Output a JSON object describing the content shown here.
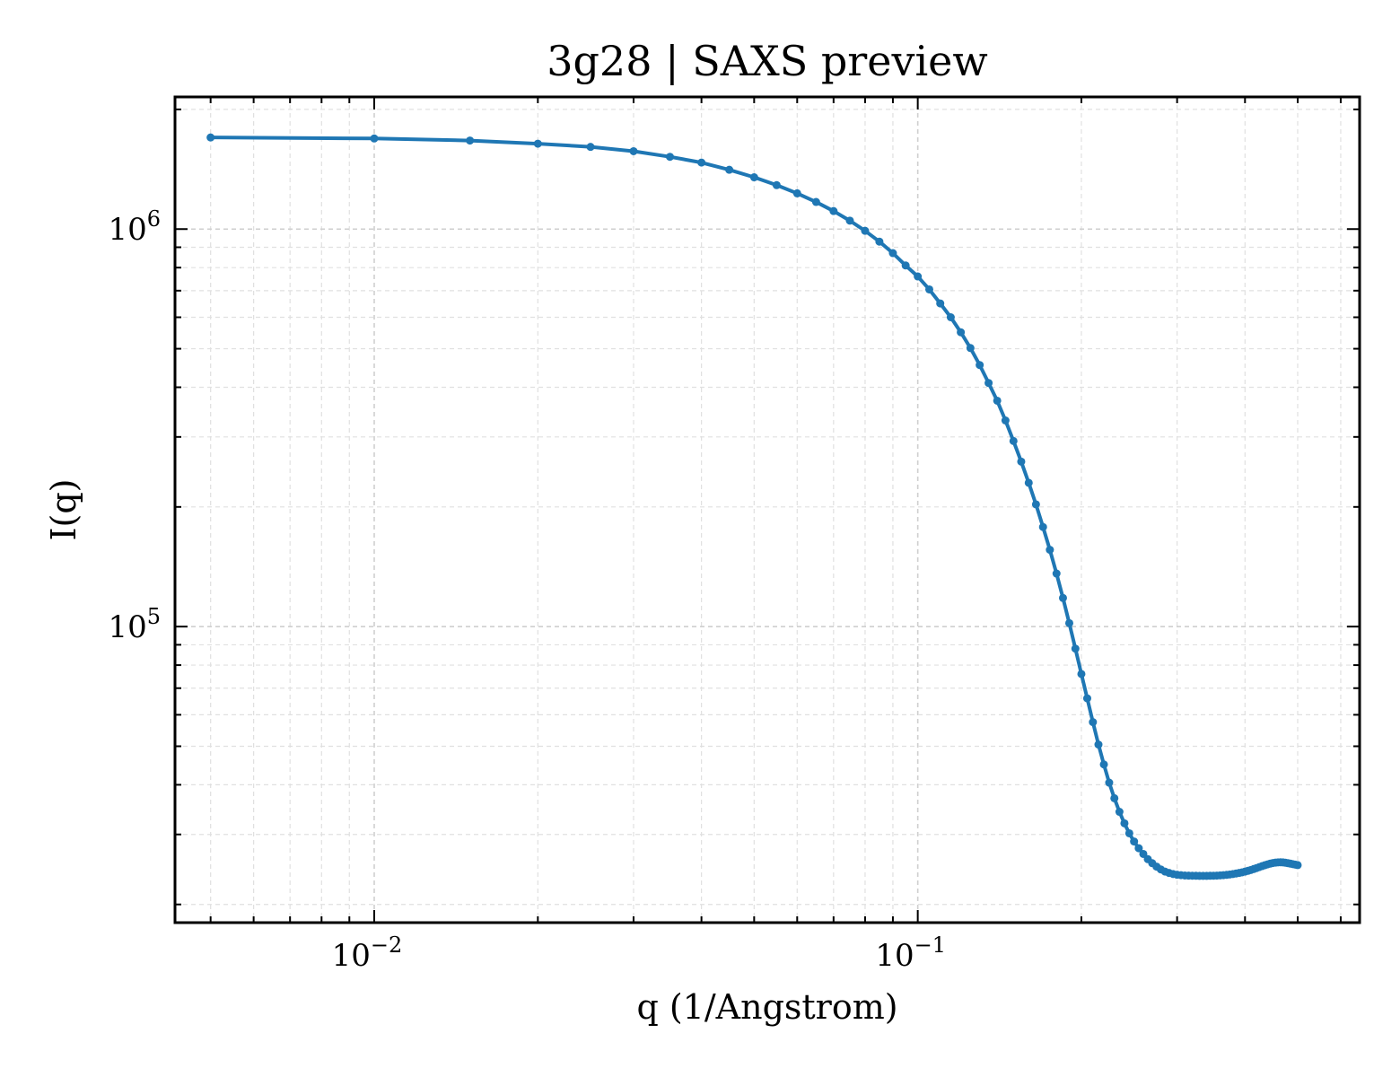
{
  "chart_data": {
    "type": "line",
    "title": "3g28 | SAXS preview",
    "xlabel": "q (1/Angstrom)",
    "ylabel": "I(q)",
    "xscale": "log",
    "yscale": "log",
    "xlim": [
      0.0043,
      0.65
    ],
    "ylim": [
      18000,
      2150000
    ],
    "grid": true,
    "line_color": "#1f77b4",
    "x_ticks": [
      {
        "value": 0.01,
        "label_base": "10",
        "label_exp": "−2"
      },
      {
        "value": 0.1,
        "label_base": "10",
        "label_exp": "−1"
      }
    ],
    "y_ticks": [
      {
        "value": 100000,
        "label_base": "10",
        "label_exp": "5"
      },
      {
        "value": 1000000,
        "label_base": "10",
        "label_exp": "6"
      }
    ],
    "series": [
      {
        "x": [
          0.005,
          0.01,
          0.015,
          0.02,
          0.025,
          0.03,
          0.035,
          0.04,
          0.045,
          0.05,
          0.055,
          0.06,
          0.065,
          0.07,
          0.075,
          0.08,
          0.085,
          0.09,
          0.095,
          0.1,
          0.105,
          0.11,
          0.115,
          0.12,
          0.125,
          0.13,
          0.135,
          0.14,
          0.145,
          0.15,
          0.155,
          0.16,
          0.165,
          0.17,
          0.175,
          0.18,
          0.185,
          0.19,
          0.195,
          0.2,
          0.205,
          0.21,
          0.215,
          0.22,
          0.225,
          0.23,
          0.235,
          0.24,
          0.245,
          0.25,
          0.255,
          0.26,
          0.265,
          0.27,
          0.275,
          0.28,
          0.285,
          0.29,
          0.295,
          0.3,
          0.305,
          0.31,
          0.315,
          0.32,
          0.325,
          0.33,
          0.335,
          0.34,
          0.345,
          0.35,
          0.355,
          0.36,
          0.365,
          0.37,
          0.375,
          0.38,
          0.385,
          0.39,
          0.395,
          0.4,
          0.405,
          0.41,
          0.415,
          0.42,
          0.425,
          0.43,
          0.435,
          0.44,
          0.445,
          0.45,
          0.455,
          0.46,
          0.465,
          0.47,
          0.475,
          0.48,
          0.485,
          0.49,
          0.495,
          0.5
        ],
        "y": [
          1700000,
          1690000,
          1670000,
          1640000,
          1610000,
          1570000,
          1520000,
          1470000,
          1410000,
          1350000,
          1290000,
          1230000,
          1170000,
          1110000,
          1050000,
          990000,
          930000,
          870000,
          810000,
          760000,
          705000,
          650000,
          600000,
          550000,
          502000,
          455000,
          410000,
          370000,
          330000,
          293000,
          260000,
          230000,
          203000,
          178000,
          156000,
          136000,
          118000,
          102000,
          88000,
          76000,
          66000,
          57500,
          50500,
          45000,
          40500,
          37000,
          34200,
          32000,
          30200,
          28800,
          27700,
          26800,
          26000,
          25400,
          24900,
          24500,
          24200,
          24000,
          23850,
          23750,
          23700,
          23650,
          23630,
          23620,
          23610,
          23600,
          23600,
          23600,
          23610,
          23620,
          23640,
          23670,
          23700,
          23740,
          23790,
          23850,
          23920,
          24000,
          24090,
          24190,
          24300,
          24420,
          24550,
          24690,
          24830,
          24970,
          25100,
          25220,
          25330,
          25420,
          25480,
          25520,
          25530,
          25510,
          25460,
          25400,
          25330,
          25260,
          25190,
          25120
        ]
      }
    ]
  }
}
